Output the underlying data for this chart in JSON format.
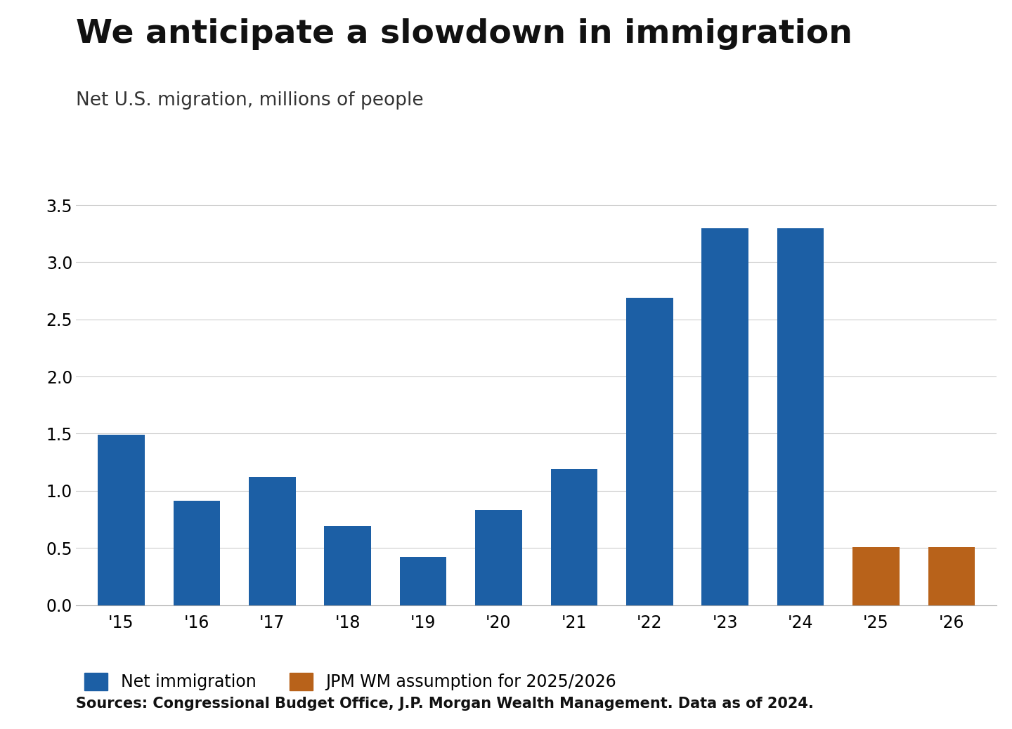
{
  "title": "We anticipate a slowdown in immigration",
  "subtitle": "Net U.S. migration, millions of people",
  "source": "Sources: Congressional Budget Office, J.P. Morgan Wealth Management. Data as of 2024.",
  "categories": [
    "'15",
    "'16",
    "'17",
    "'18",
    "'19",
    "'20",
    "'21",
    "'22",
    "'23",
    "'24",
    "'25",
    "'26"
  ],
  "values": [
    1.49,
    0.91,
    1.12,
    0.69,
    0.42,
    0.83,
    1.19,
    2.69,
    3.3,
    3.3,
    0.51,
    0.51
  ],
  "bar_colors": [
    "#1c5fa5",
    "#1c5fa5",
    "#1c5fa5",
    "#1c5fa5",
    "#1c5fa5",
    "#1c5fa5",
    "#1c5fa5",
    "#1c5fa5",
    "#1c5fa5",
    "#1c5fa5",
    "#b8621a",
    "#b8621a"
  ],
  "blue_color": "#1c5fa5",
  "orange_color": "#b8621a",
  "ylim": [
    0,
    3.7
  ],
  "yticks": [
    0.0,
    0.5,
    1.0,
    1.5,
    2.0,
    2.5,
    3.0,
    3.5
  ],
  "legend_blue": "Net immigration",
  "legend_orange": "JPM WM assumption for 2025/2026",
  "title_fontsize": 34,
  "subtitle_fontsize": 19,
  "tick_fontsize": 17,
  "legend_fontsize": 17,
  "source_fontsize": 15,
  "background_color": "#ffffff",
  "grid_color": "#cccccc"
}
